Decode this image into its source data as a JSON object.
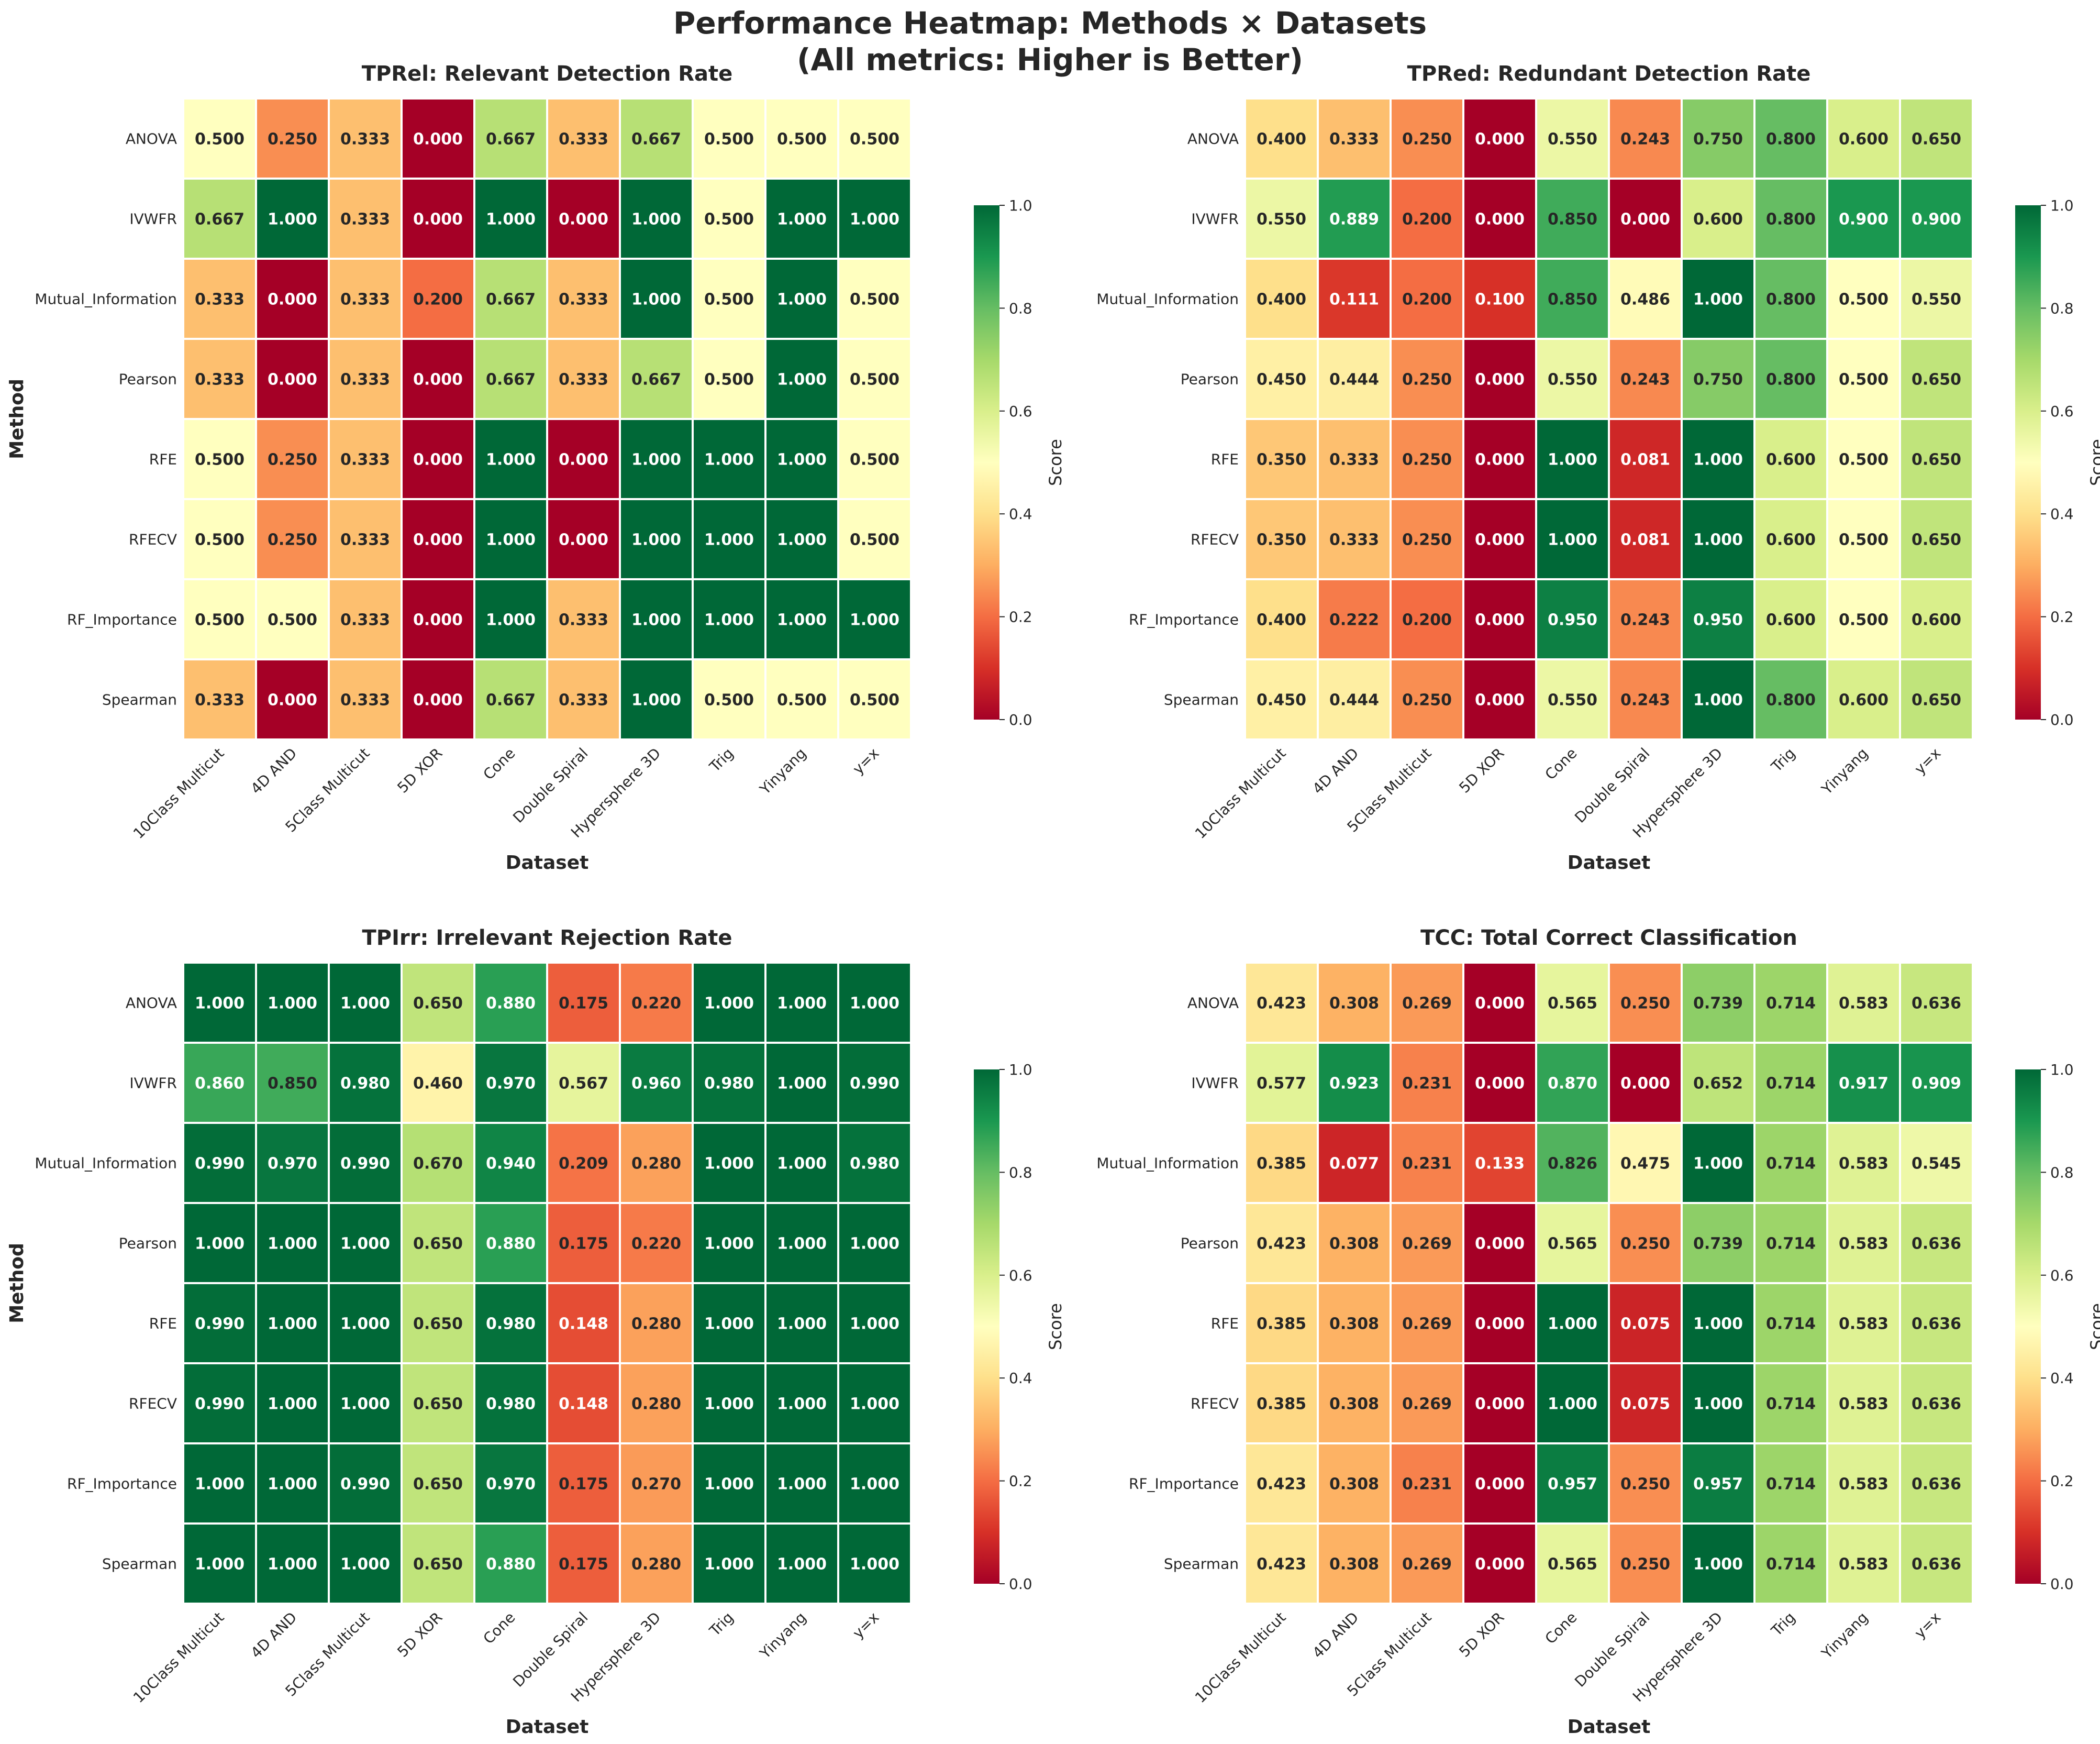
{
  "figure": {
    "title_line1": "Performance Heatmap: Methods × Datasets",
    "title_line2": "(All metrics: Higher is Better)"
  },
  "colorbar": {
    "label": "Score",
    "ticks": [
      "0.0",
      "0.2",
      "0.4",
      "0.6",
      "0.8",
      "1.0"
    ],
    "colormap": "RdYlGn"
  },
  "chart_data": [
    {
      "type": "heatmap",
      "title": "TPRel: Relevant Detection Rate",
      "xlabel": "Dataset",
      "ylabel": "Method",
      "vmin": 0,
      "vmax": 1,
      "x_categories": [
        "10Class Multicut",
        "4D AND",
        "5Class Multicut",
        "5D XOR",
        "Cone",
        "Double Spiral",
        "Hypersphere 3D",
        "Trig",
        "Yinyang",
        "y=x"
      ],
      "y_categories": [
        "ANOVA",
        "IVWFR",
        "Mutual_Information",
        "Pearson",
        "RFE",
        "RFECV",
        "RF_Importance",
        "Spearman"
      ],
      "values": [
        [
          0.5,
          0.25,
          0.333,
          0.0,
          0.667,
          0.333,
          0.667,
          0.5,
          0.5,
          0.5
        ],
        [
          0.667,
          1.0,
          0.333,
          0.0,
          1.0,
          0.0,
          1.0,
          0.5,
          1.0,
          1.0
        ],
        [
          0.333,
          0.0,
          0.333,
          0.2,
          0.667,
          0.333,
          1.0,
          0.5,
          1.0,
          0.5
        ],
        [
          0.333,
          0.0,
          0.333,
          0.0,
          0.667,
          0.333,
          0.667,
          0.5,
          1.0,
          0.5
        ],
        [
          0.5,
          0.25,
          0.333,
          0.0,
          1.0,
          0.0,
          1.0,
          1.0,
          1.0,
          0.5
        ],
        [
          0.5,
          0.25,
          0.333,
          0.0,
          1.0,
          0.0,
          1.0,
          1.0,
          1.0,
          0.5
        ],
        [
          0.5,
          0.5,
          0.333,
          0.0,
          1.0,
          0.333,
          1.0,
          1.0,
          1.0,
          1.0
        ],
        [
          0.333,
          0.0,
          0.333,
          0.0,
          0.667,
          0.333,
          1.0,
          0.5,
          0.5,
          0.5
        ]
      ]
    },
    {
      "type": "heatmap",
      "title": "TPRed: Redundant Detection Rate",
      "xlabel": "Dataset",
      "ylabel": "Method",
      "vmin": 0,
      "vmax": 1,
      "x_categories": [
        "10Class Multicut",
        "4D AND",
        "5Class Multicut",
        "5D XOR",
        "Cone",
        "Double Spiral",
        "Hypersphere 3D",
        "Trig",
        "Yinyang",
        "y=x"
      ],
      "y_categories": [
        "ANOVA",
        "IVWFR",
        "Mutual_Information",
        "Pearson",
        "RFE",
        "RFECV",
        "RF_Importance",
        "Spearman"
      ],
      "values": [
        [
          0.4,
          0.333,
          0.25,
          0.0,
          0.55,
          0.243,
          0.75,
          0.8,
          0.6,
          0.65
        ],
        [
          0.55,
          0.889,
          0.2,
          0.0,
          0.85,
          0.0,
          0.6,
          0.8,
          0.9,
          0.9
        ],
        [
          0.4,
          0.111,
          0.2,
          0.1,
          0.85,
          0.486,
          1.0,
          0.8,
          0.5,
          0.55
        ],
        [
          0.45,
          0.444,
          0.25,
          0.0,
          0.55,
          0.243,
          0.75,
          0.8,
          0.5,
          0.65
        ],
        [
          0.35,
          0.333,
          0.25,
          0.0,
          1.0,
          0.081,
          1.0,
          0.6,
          0.5,
          0.65
        ],
        [
          0.35,
          0.333,
          0.25,
          0.0,
          1.0,
          0.081,
          1.0,
          0.6,
          0.5,
          0.65
        ],
        [
          0.4,
          0.222,
          0.2,
          0.0,
          0.95,
          0.243,
          0.95,
          0.6,
          0.5,
          0.6
        ],
        [
          0.45,
          0.444,
          0.25,
          0.0,
          0.55,
          0.243,
          1.0,
          0.8,
          0.6,
          0.65
        ]
      ]
    },
    {
      "type": "heatmap",
      "title": "TPIrr: Irrelevant Rejection Rate",
      "xlabel": "Dataset",
      "ylabel": "Method",
      "vmin": 0,
      "vmax": 1,
      "x_categories": [
        "10Class Multicut",
        "4D AND",
        "5Class Multicut",
        "5D XOR",
        "Cone",
        "Double Spiral",
        "Hypersphere 3D",
        "Trig",
        "Yinyang",
        "y=x"
      ],
      "y_categories": [
        "ANOVA",
        "IVWFR",
        "Mutual_Information",
        "Pearson",
        "RFE",
        "RFECV",
        "RF_Importance",
        "Spearman"
      ],
      "values": [
        [
          1.0,
          1.0,
          1.0,
          0.65,
          0.88,
          0.175,
          0.22,
          1.0,
          1.0,
          1.0
        ],
        [
          0.86,
          0.85,
          0.98,
          0.46,
          0.97,
          0.567,
          0.96,
          0.98,
          1.0,
          0.99
        ],
        [
          0.99,
          0.97,
          0.99,
          0.67,
          0.94,
          0.209,
          0.28,
          1.0,
          1.0,
          0.98
        ],
        [
          1.0,
          1.0,
          1.0,
          0.65,
          0.88,
          0.175,
          0.22,
          1.0,
          1.0,
          1.0
        ],
        [
          0.99,
          1.0,
          1.0,
          0.65,
          0.98,
          0.148,
          0.28,
          1.0,
          1.0,
          1.0
        ],
        [
          0.99,
          1.0,
          1.0,
          0.65,
          0.98,
          0.148,
          0.28,
          1.0,
          1.0,
          1.0
        ],
        [
          1.0,
          1.0,
          0.99,
          0.65,
          0.97,
          0.175,
          0.27,
          1.0,
          1.0,
          1.0
        ],
        [
          1.0,
          1.0,
          1.0,
          0.65,
          0.88,
          0.175,
          0.28,
          1.0,
          1.0,
          1.0
        ]
      ]
    },
    {
      "type": "heatmap",
      "title": "TCC: Total Correct Classification",
      "xlabel": "Dataset",
      "ylabel": "Method",
      "vmin": 0,
      "vmax": 1,
      "x_categories": [
        "10Class Multicut",
        "4D AND",
        "5Class Multicut",
        "5D XOR",
        "Cone",
        "Double Spiral",
        "Hypersphere 3D",
        "Trig",
        "Yinyang",
        "y=x"
      ],
      "y_categories": [
        "ANOVA",
        "IVWFR",
        "Mutual_Information",
        "Pearson",
        "RFE",
        "RFECV",
        "RF_Importance",
        "Spearman"
      ],
      "values": [
        [
          0.423,
          0.308,
          0.269,
          0.0,
          0.565,
          0.25,
          0.739,
          0.714,
          0.583,
          0.636
        ],
        [
          0.577,
          0.923,
          0.231,
          0.0,
          0.87,
          0.0,
          0.652,
          0.714,
          0.917,
          0.909
        ],
        [
          0.385,
          0.077,
          0.231,
          0.133,
          0.826,
          0.475,
          1.0,
          0.714,
          0.583,
          0.545
        ],
        [
          0.423,
          0.308,
          0.269,
          0.0,
          0.565,
          0.25,
          0.739,
          0.714,
          0.583,
          0.636
        ],
        [
          0.385,
          0.308,
          0.269,
          0.0,
          1.0,
          0.075,
          1.0,
          0.714,
          0.583,
          0.636
        ],
        [
          0.385,
          0.308,
          0.269,
          0.0,
          1.0,
          0.075,
          1.0,
          0.714,
          0.583,
          0.636
        ],
        [
          0.423,
          0.308,
          0.231,
          0.0,
          0.957,
          0.25,
          0.957,
          0.714,
          0.583,
          0.636
        ],
        [
          0.423,
          0.308,
          0.269,
          0.0,
          0.565,
          0.25,
          1.0,
          0.714,
          0.583,
          0.636
        ]
      ]
    }
  ]
}
